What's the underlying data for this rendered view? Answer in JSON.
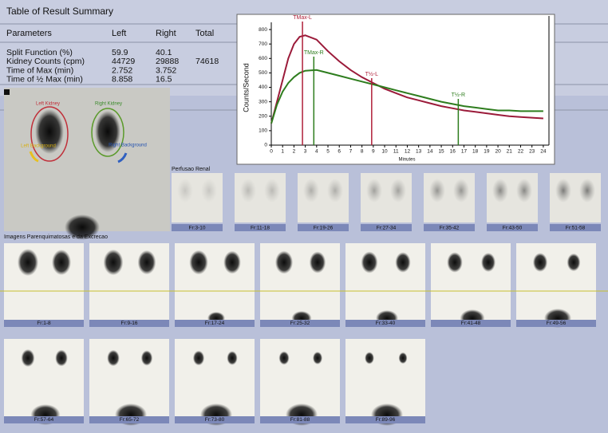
{
  "table": {
    "title": "Table of Result Summary",
    "headers": [
      "Parameters",
      "Left",
      "Right",
      "Total"
    ],
    "rows": [
      [
        "Split Function (%)",
        "59.9",
        "40.1"
      ],
      [
        "Kidney Counts (cpm)",
        "44729",
        "29888",
        "74618"
      ],
      [
        "Time of Max (min)",
        "2.752",
        "3.752"
      ],
      [
        "Time of ½ Max (min)",
        "8.858",
        "16.5"
      ]
    ]
  },
  "chart_data": {
    "type": "line",
    "ylabel": "Counts/Second",
    "xlabel": "Minutes",
    "x": [
      0,
      0.5,
      1,
      1.5,
      2,
      2.5,
      3,
      4,
      5,
      6,
      7,
      8,
      9,
      10,
      11,
      12,
      13,
      14,
      15,
      16,
      17,
      18,
      19,
      20,
      21,
      22,
      23,
      24
    ],
    "series": [
      {
        "name": "Left",
        "color": "#9b1b3a",
        "values": [
          150,
          300,
          450,
          600,
          700,
          750,
          760,
          730,
          650,
          580,
          520,
          470,
          430,
          390,
          360,
          330,
          310,
          290,
          270,
          255,
          240,
          230,
          220,
          210,
          200,
          195,
          190,
          185
        ]
      },
      {
        "name": "Right",
        "color": "#2e7d1e",
        "values": [
          150,
          280,
          370,
          430,
          470,
          500,
          515,
          520,
          500,
          480,
          460,
          440,
          420,
          400,
          380,
          360,
          340,
          320,
          300,
          285,
          270,
          260,
          250,
          240,
          240,
          235,
          235,
          235
        ]
      }
    ],
    "markers": [
      {
        "label": "TMax-L",
        "x": 2.752,
        "color": "#b0203a"
      },
      {
        "label": "TMax-R",
        "x": 3.752,
        "color": "#2e7d1e"
      },
      {
        "label": "T½-L",
        "x": 8.858,
        "color": "#b0203a"
      },
      {
        "label": "T½-R",
        "x": 16.5,
        "color": "#2e7d1e"
      }
    ],
    "xlim": [
      0,
      24.5
    ],
    "xticks": [
      0,
      1,
      2,
      3,
      4,
      5,
      6,
      7,
      8,
      9,
      10,
      11,
      12,
      13,
      14,
      15,
      16,
      17,
      18,
      19,
      20,
      21,
      22,
      23,
      24
    ],
    "ylim": [
      0,
      850
    ],
    "yticks": [
      0,
      100,
      200,
      300,
      400,
      500,
      600,
      700,
      800
    ],
    "grid": false
  },
  "roi_image": {
    "labels": [
      "Left Kidney",
      "Right Kidney",
      "Left Background",
      "Right Background"
    ]
  },
  "perfusion": {
    "title": "Perfusao Renal",
    "frames": [
      "Fr:3-10",
      "Fr:11-18",
      "Fr:19-26",
      "Fr:27-34",
      "Fr:35-42",
      "Fr:43-50",
      "Fr:51-58"
    ]
  },
  "excretion": {
    "title": "Imagens Parenquimatosas e da Excrecao",
    "frames": [
      "Fr:1-8",
      "Fr:9-16",
      "Fr:17-24",
      "Fr:25-32",
      "Fr:33-40",
      "Fr:41-48",
      "Fr:49-56",
      "Fr:57-64",
      "Fr:65-72",
      "Fr:73-80",
      "Fr:81-88",
      "Fr:89-96"
    ]
  }
}
